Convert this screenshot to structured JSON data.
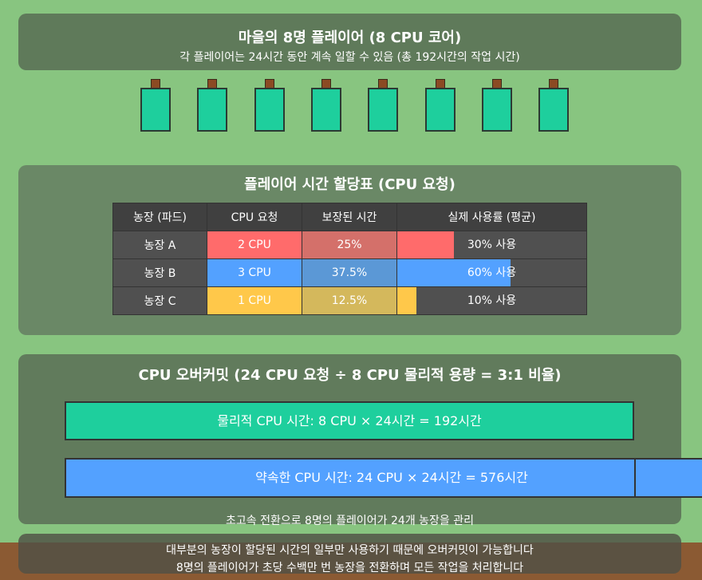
{
  "header": {
    "title": "마을의 8명 플레이어 (8 CPU 코어)",
    "subtitle": "각 플레이어는 24시간 동안 계속 일할 수 있음 (총 192시간의 작업 시간)"
  },
  "cpus": {
    "count": 8,
    "color": "#1ecf9d"
  },
  "allocation": {
    "title": "플레이어 시간 할당표 (CPU 요청)",
    "headers": [
      "농장 (파드)",
      "CPU 요청",
      "보장된 시간",
      "실제 사용률 (평균)"
    ],
    "rows": [
      {
        "farm": "농장 A",
        "cpu": "2 CPU",
        "guaranteed": "25%",
        "usage_label": "30% 사용",
        "usage": 30,
        "color": "#ff6b6b",
        "guar_color": "#d4706a"
      },
      {
        "farm": "농장 B",
        "cpu": "3 CPU",
        "guaranteed": "37.5%",
        "usage_label": "60% 사용",
        "usage": 60,
        "color": "#53a1ff",
        "guar_color": "#5b98d6"
      },
      {
        "farm": "농장 C",
        "cpu": "1 CPU",
        "guaranteed": "12.5%",
        "usage_label": "10% 사용",
        "usage": 10,
        "color": "#ffc84a",
        "guar_color": "#d4b85c"
      }
    ]
  },
  "overcommit": {
    "title": "CPU 오버커밋 (24 CPU 요청 ÷ 8 CPU 물리적 용량 = 3:1 비율)",
    "physical": "물리적 CPU 시간: 8 CPU × 24시간 = 192시간",
    "promised": "약속한 CPU 시간: 24 CPU × 24시간 = 576시간",
    "note": "초고속 전환으로 8명의 플레이어가 24개 농장을 관리"
  },
  "footer": {
    "line1": "대부분의 농장이 할당된 시간의 일부만 사용하기 때문에 오버커밋이 가능합니다",
    "line2": "8명의 플레이어가 초당 수백만 번 농장을 전환하며 모든 작업을 처리합니다"
  }
}
